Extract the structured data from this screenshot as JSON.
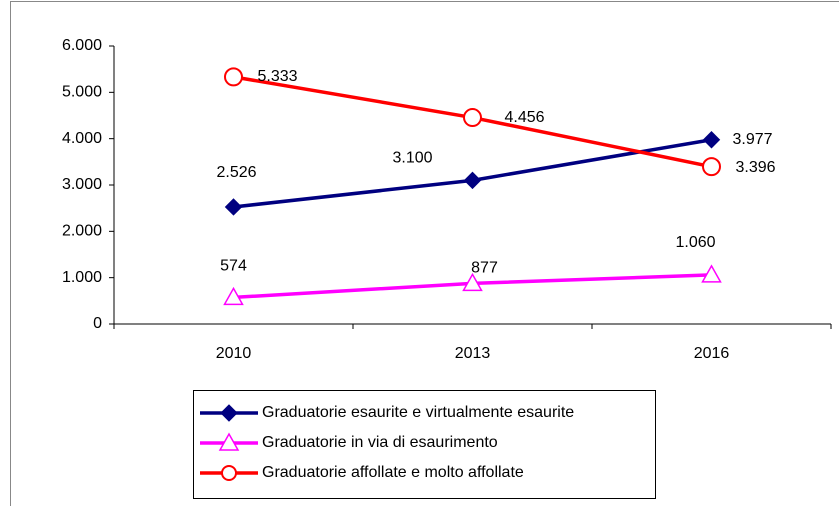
{
  "chart_data": {
    "type": "line",
    "categories": [
      "2010",
      "2013",
      "2016"
    ],
    "series": [
      {
        "name": "Graduatorie esaurite e virtualmente esaurite",
        "color": "#000080",
        "marker": "diamond",
        "values": [
          2526,
          3100,
          3977
        ],
        "value_labels": [
          "2.526",
          "3.100",
          "3.977"
        ]
      },
      {
        "name": "Graduatorie in via di esaurimento",
        "color": "#ff00ff",
        "marker": "triangle",
        "values": [
          574,
          877,
          1060
        ],
        "value_labels": [
          "574",
          "877",
          "1.060"
        ]
      },
      {
        "name": "Graduatorie affollate e molto affollate",
        "color": "#ff0000",
        "marker": "circle",
        "values": [
          5333,
          4456,
          3396
        ],
        "value_labels": [
          "5.333",
          "4.456",
          "3.396"
        ]
      }
    ],
    "ylim": [
      0,
      6000
    ],
    "yticks": [
      {
        "value": 0,
        "label": "0"
      },
      {
        "value": 1000,
        "label": "1.000"
      },
      {
        "value": 2000,
        "label": "2.000"
      },
      {
        "value": 3000,
        "label": "3.000"
      },
      {
        "value": 4000,
        "label": "4.000"
      },
      {
        "value": 5000,
        "label": "5.000"
      },
      {
        "value": 6000,
        "label": "6.000"
      }
    ],
    "grid": false
  }
}
